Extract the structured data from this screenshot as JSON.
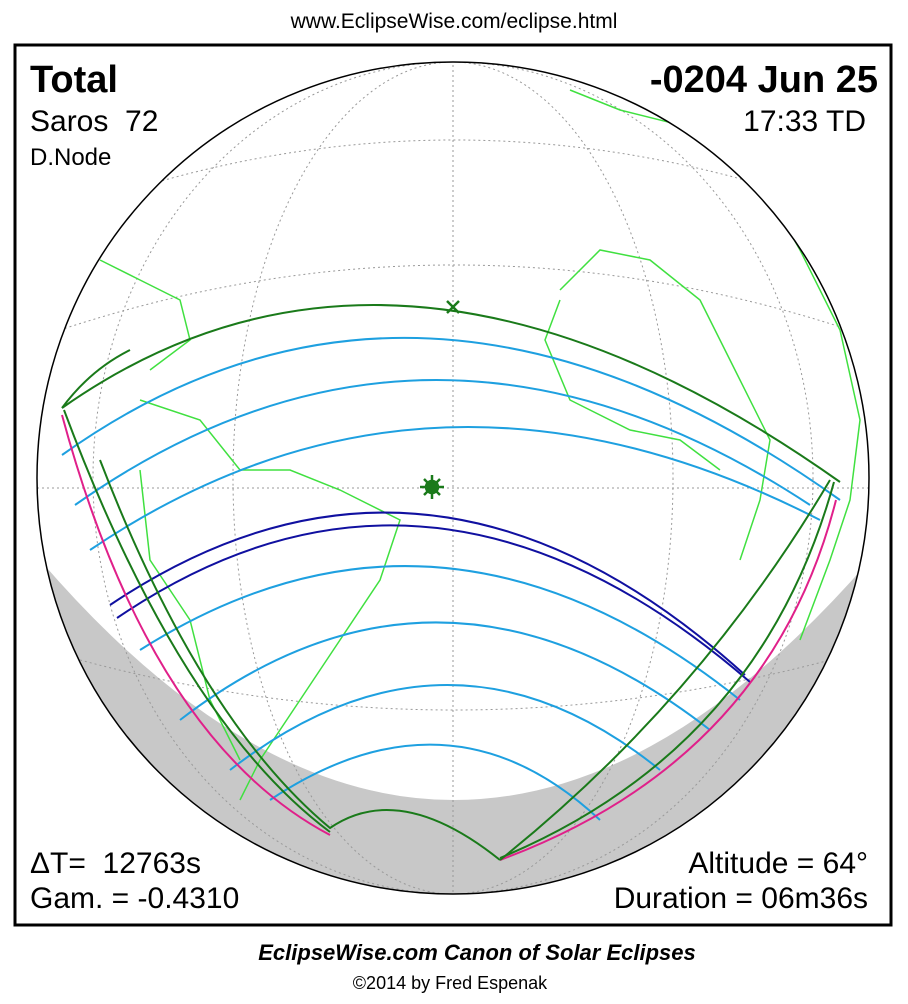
{
  "header": {
    "url": "www.EclipseWise.com/eclipse.html"
  },
  "eclipse": {
    "type": "Total",
    "saros": "Saros  72",
    "node": "D.Node",
    "date": "-0204 Jun 25",
    "time": "17:33 TD",
    "delta_t": "ΔT=  12763s",
    "gamma": "Gam. = -0.4310",
    "altitude": "Altitude = 64°",
    "duration": "Duration = 06m36s"
  },
  "footer": {
    "title": "EclipseWise.com Canon of Solar Eclipses",
    "copyright": "©2014 by Fred Espenak"
  }
}
